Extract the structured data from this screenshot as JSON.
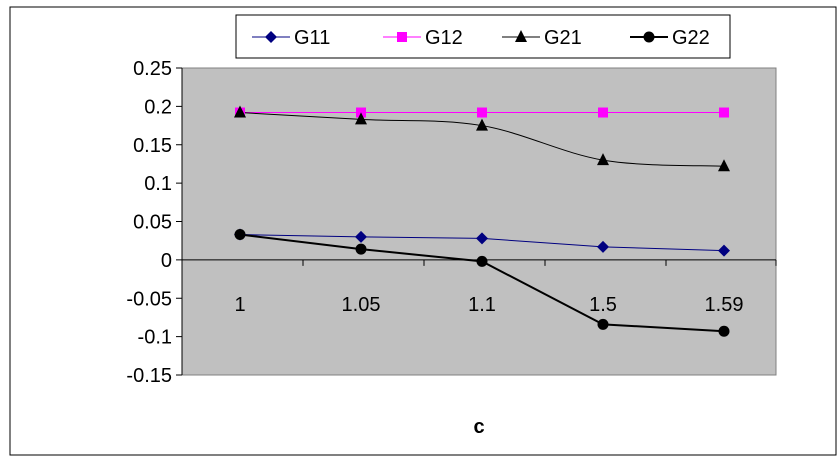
{
  "chart_data": {
    "type": "line",
    "title": "",
    "xlabel": "c",
    "ylabel": "",
    "categories": [
      "1",
      "1.05",
      "1.1",
      "1.5",
      "1.59"
    ],
    "ylim": [
      -0.15,
      0.25
    ],
    "yticks": [
      0.25,
      0.2,
      0.15,
      0.1,
      0.05,
      0,
      -0.05,
      -0.1,
      -0.15
    ],
    "ytick_labels": [
      "0.25",
      "0.2",
      "0.15",
      "0.1",
      "0.05",
      "0",
      "-0.05",
      "-0.1",
      "-0.15"
    ],
    "grid": false,
    "plot_background": "#c0c0c0",
    "legend_position": "top",
    "series": [
      {
        "name": "G11",
        "values": [
          0.033,
          0.03,
          0.028,
          0.017,
          0.012
        ],
        "color": "#000080",
        "marker": "diamond",
        "smooth": false,
        "line_width": 1
      },
      {
        "name": "G12",
        "values": [
          0.192,
          0.192,
          0.192,
          0.192,
          0.192
        ],
        "color": "#ff00ff",
        "marker": "square",
        "smooth": false,
        "line_width": 1
      },
      {
        "name": "G21",
        "values": [
          0.192,
          0.183,
          0.175,
          0.13,
          0.122
        ],
        "color": "#000000",
        "marker": "triangle",
        "smooth": true,
        "line_width": 1
      },
      {
        "name": "G22",
        "values": [
          0.033,
          0.014,
          -0.002,
          -0.084,
          -0.093
        ],
        "color": "#000000",
        "marker": "circle",
        "smooth": false,
        "line_width": 2
      }
    ]
  }
}
